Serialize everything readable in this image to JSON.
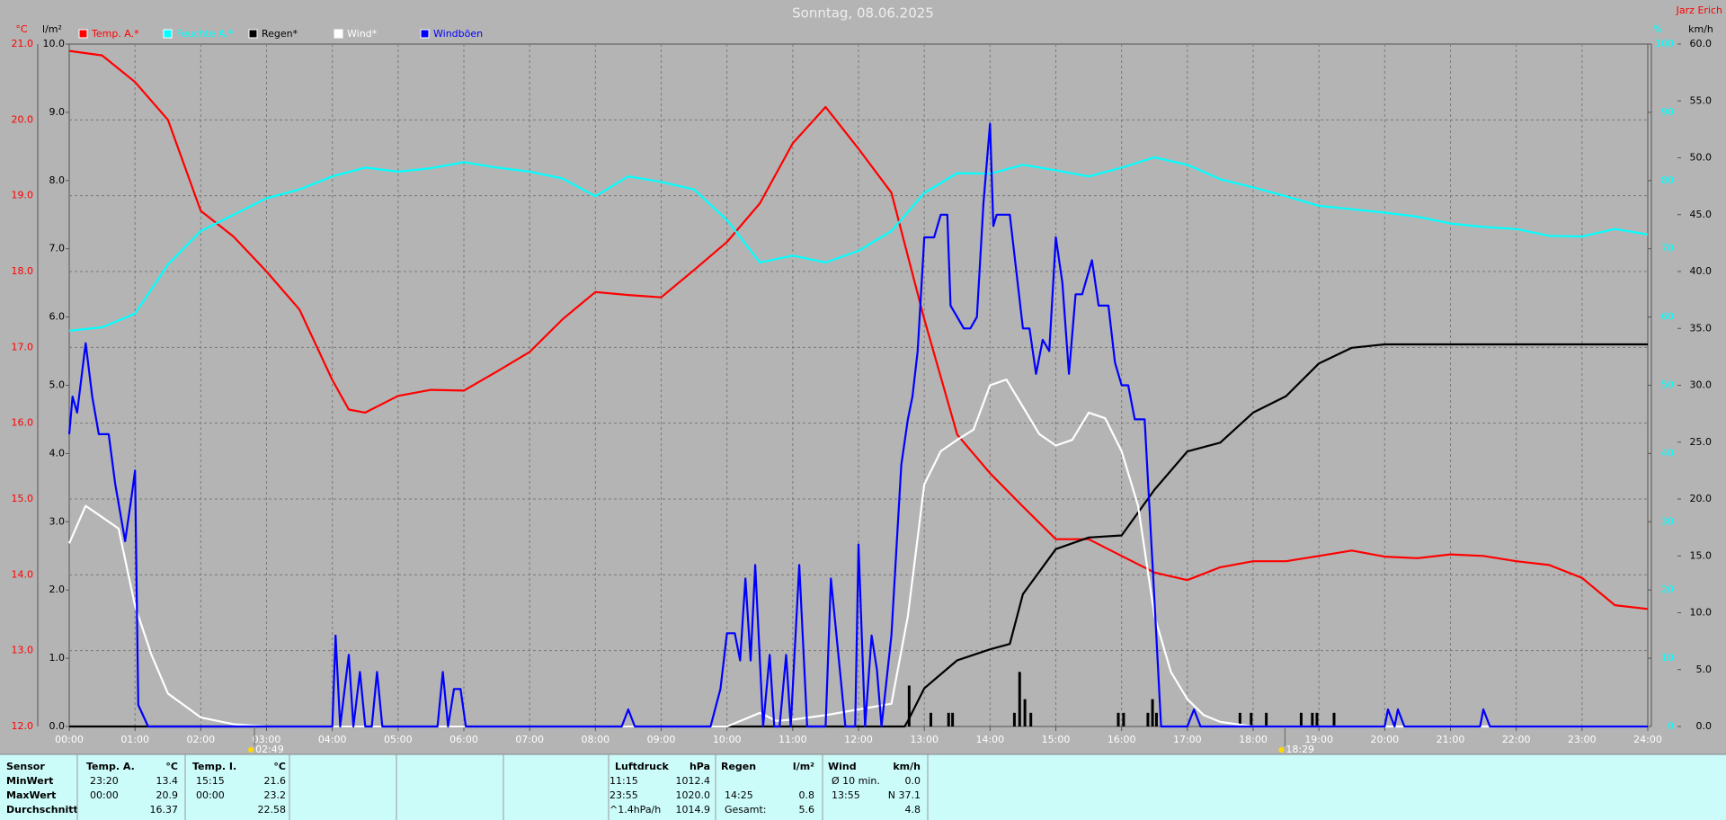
{
  "chart_data": {
    "type": "line",
    "title": "Sonntag, 08.06.2025",
    "author": "Jarz Erich",
    "axis_units": {
      "y": "°C",
      "y2": "l/m²",
      "y3": "%",
      "y4": "km/h"
    },
    "xlim": [
      0,
      24
    ],
    "xticks": [
      {
        "value": 0,
        "label": "00:00"
      },
      {
        "value": 1,
        "label": "01:00"
      },
      {
        "value": 2,
        "label": "02:00"
      },
      {
        "value": 3,
        "label": "03:00"
      },
      {
        "value": 4,
        "label": "04:00"
      },
      {
        "value": 5,
        "label": "05:00"
      },
      {
        "value": 6,
        "label": "06:00"
      },
      {
        "value": 7,
        "label": "07:00"
      },
      {
        "value": 8,
        "label": "08:00"
      },
      {
        "value": 9,
        "label": "09:00"
      },
      {
        "value": 10,
        "label": "10:00"
      },
      {
        "value": 11,
        "label": "11:00"
      },
      {
        "value": 12,
        "label": "12:00"
      },
      {
        "value": 13,
        "label": "13:00"
      },
      {
        "value": 14,
        "label": "14:00"
      },
      {
        "value": 15,
        "label": "15:00"
      },
      {
        "value": 16,
        "label": "16:00"
      },
      {
        "value": 17,
        "label": "17:00"
      },
      {
        "value": 18,
        "label": "18:00"
      },
      {
        "value": 19,
        "label": "19:00"
      },
      {
        "value": 20,
        "label": "20:00"
      },
      {
        "value": 21,
        "label": "21:00"
      },
      {
        "value": 22,
        "label": "22:00"
      },
      {
        "value": 23,
        "label": "23:00"
      },
      {
        "value": 24,
        "label": "24:00"
      }
    ],
    "ylim": [
      12,
      21
    ],
    "yticks": [
      {
        "value": 12,
        "label": "12.0"
      },
      {
        "value": 13,
        "label": "13.0"
      },
      {
        "value": 14,
        "label": "14.0"
      },
      {
        "value": 15,
        "label": "15.0"
      },
      {
        "value": 16,
        "label": "16.0"
      },
      {
        "value": 17,
        "label": "17.0"
      },
      {
        "value": 18,
        "label": "18.0"
      },
      {
        "value": 19,
        "label": "19.0"
      },
      {
        "value": 20,
        "label": "20.0"
      },
      {
        "value": 21,
        "label": "21.0"
      }
    ],
    "y2lim": [
      0,
      10
    ],
    "y2ticks": [
      {
        "value": 0,
        "label": "0.0"
      },
      {
        "value": 1,
        "label": "1.0"
      },
      {
        "value": 2,
        "label": "2.0"
      },
      {
        "value": 3,
        "label": "3.0"
      },
      {
        "value": 4,
        "label": "4.0"
      },
      {
        "value": 5,
        "label": "5.0"
      },
      {
        "value": 6,
        "label": "6.0"
      },
      {
        "value": 7,
        "label": "7.0"
      },
      {
        "value": 8,
        "label": "8.0"
      },
      {
        "value": 9,
        "label": "9.0"
      },
      {
        "value": 10,
        "label": "10.0"
      }
    ],
    "y3lim": [
      0,
      100
    ],
    "y3ticks": [
      0,
      10,
      20,
      30,
      40,
      50,
      60,
      70,
      80,
      90,
      100
    ],
    "y4lim": [
      0,
      60
    ],
    "y4ticks": [
      {
        "value": 0,
        "label": "0.0"
      },
      {
        "value": 5,
        "label": "5.0"
      },
      {
        "value": 10,
        "label": "10.0"
      },
      {
        "value": 15,
        "label": "15.0"
      },
      {
        "value": 20,
        "label": "20.0"
      },
      {
        "value": 25,
        "label": "25.0"
      },
      {
        "value": 30,
        "label": "30.0"
      },
      {
        "value": 35,
        "label": "35.0"
      },
      {
        "value": 40,
        "label": "40.0"
      },
      {
        "value": 45,
        "label": "45.0"
      },
      {
        "value": 50,
        "label": "50.0"
      },
      {
        "value": 55,
        "label": "55.0"
      },
      {
        "value": 60,
        "label": "60.0"
      }
    ],
    "grid": true,
    "series": [
      {
        "name": "Temp. A.*",
        "color": "#ff0000",
        "axis": "y",
        "x": [
          0,
          0.5,
          1,
          1.5,
          2,
          2.5,
          3,
          3.5,
          4,
          4.25,
          4.5,
          5,
          5.5,
          6,
          6.5,
          7,
          7.5,
          8,
          8.5,
          9,
          9.5,
          10,
          10.5,
          11,
          11.5,
          12,
          12.5,
          13,
          13.5,
          14,
          14.5,
          15,
          15.5,
          16,
          16.5,
          17,
          17.5,
          18,
          18.5,
          19,
          19.5,
          20,
          20.5,
          21,
          21.5,
          22,
          22.5,
          23,
          23.5,
          24
        ],
        "values": [
          20.91,
          20.85,
          20.5,
          20.0,
          18.8,
          18.46,
          18.0,
          17.5,
          16.57,
          16.18,
          16.14,
          16.36,
          16.44,
          16.43,
          16.68,
          16.94,
          17.37,
          17.73,
          17.69,
          17.66,
          18.02,
          18.39,
          18.9,
          19.69,
          20.17,
          19.62,
          19.04,
          17.37,
          15.85,
          15.34,
          14.9,
          14.47,
          14.47,
          14.25,
          14.03,
          13.93,
          14.1,
          14.18,
          14.18,
          14.25,
          14.32,
          14.24,
          14.22,
          14.27,
          14.25,
          14.18,
          14.13,
          13.96,
          13.6,
          13.55
        ]
      },
      {
        "name": "Feuchte A.*",
        "color": "#00ffff",
        "axis": "y3",
        "x": [
          0,
          0.5,
          1,
          1.5,
          2,
          2.5,
          3,
          3.5,
          4,
          4.5,
          5,
          5.5,
          6,
          6.5,
          7,
          7.5,
          8,
          8.5,
          9,
          9.5,
          10,
          10.5,
          11,
          11.5,
          12,
          12.5,
          13,
          13.5,
          14,
          14.5,
          15,
          15.5,
          16,
          16.5,
          17,
          17.5,
          18,
          18.5,
          19,
          19.5,
          20,
          20.5,
          21,
          21.5,
          22,
          22.5,
          23,
          23.5,
          24
        ],
        "values": [
          58,
          58.5,
          60.5,
          67.7,
          72.6,
          75,
          77.4,
          78.7,
          80.6,
          81.9,
          81.3,
          81.8,
          82.7,
          81.9,
          81.3,
          80.3,
          77.7,
          80.6,
          79.8,
          78.7,
          74.2,
          68,
          69,
          68,
          69.7,
          72.6,
          78.2,
          81.1,
          81,
          82.3,
          81.5,
          80.6,
          81.9,
          83.4,
          82.3,
          80.2,
          79,
          77.7,
          76.3,
          75.8,
          75.3,
          74.7,
          73.7,
          73.2,
          72.9,
          71.9,
          71.8,
          72.9,
          72.1
        ]
      },
      {
        "name": "Regen*",
        "color": "#000000",
        "axis": "y2",
        "x": [
          0,
          12.7,
          12.75,
          13,
          13.5,
          14,
          14.3,
          14.5,
          15,
          15.5,
          16,
          16.5,
          17,
          17.5,
          18,
          18.5,
          19,
          19.5,
          20,
          24
        ],
        "values": [
          0,
          0,
          0.08,
          0.56,
          0.97,
          1.13,
          1.21,
          1.94,
          2.6,
          2.77,
          2.8,
          3.47,
          4.03,
          4.16,
          4.6,
          4.84,
          5.32,
          5.55,
          5.6,
          5.6
        ]
      },
      {
        "name": "Wind*",
        "color": "#ffffff",
        "axis": "y4",
        "x": [
          0,
          0.25,
          0.5,
          0.75,
          1,
          1.25,
          1.5,
          2,
          2.5,
          3,
          10,
          10.5,
          10.75,
          11,
          11.5,
          12,
          12.5,
          12.75,
          13,
          13.25,
          13.5,
          13.75,
          14,
          14.25,
          14.5,
          14.75,
          15,
          15.25,
          15.5,
          15.75,
          16,
          16.25,
          16.5,
          16.75,
          17,
          17.25,
          17.5,
          18,
          24
        ],
        "values": [
          16.1,
          19.4,
          18.4,
          17.4,
          10.6,
          6.3,
          2.9,
          0.8,
          0.2,
          0,
          0,
          1.2,
          0.5,
          0.6,
          1,
          1.5,
          2,
          9.7,
          21.3,
          24.2,
          25.2,
          26.1,
          30,
          30.5,
          28.1,
          25.7,
          24.7,
          25.2,
          27.6,
          27.1,
          24.2,
          19.4,
          9.7,
          4.8,
          2.4,
          1,
          0.4,
          0,
          0
        ]
      },
      {
        "name": "Windböen",
        "color": "#0000ff",
        "axis": "y4",
        "x": [
          0,
          0.05,
          0.12,
          0.25,
          0.35,
          0.45,
          0.6,
          0.7,
          0.85,
          0.95,
          1.0,
          1.05,
          1.2,
          4.0,
          4.05,
          4.12,
          4.25,
          4.32,
          4.42,
          4.5,
          4.6,
          4.68,
          4.76,
          5.6,
          5.68,
          5.76,
          5.85,
          5.95,
          6.03,
          8.4,
          8.5,
          8.6,
          9.75,
          9.9,
          10.0,
          10.12,
          10.2,
          10.28,
          10.36,
          10.43,
          10.55,
          10.65,
          10.72,
          10.8,
          10.9,
          10.97,
          11.1,
          11.22,
          11.5,
          11.58,
          11.7,
          11.8,
          11.95,
          12.0,
          12.1,
          12.2,
          12.28,
          12.35,
          12.5,
          12.65,
          12.75,
          12.82,
          12.9,
          13.0,
          13.15,
          13.25,
          13.35,
          13.4,
          13.5,
          13.6,
          13.7,
          13.8,
          13.9,
          14.0,
          14.05,
          14.1,
          14.3,
          14.4,
          14.5,
          14.6,
          14.7,
          14.8,
          14.9,
          15.0,
          15.1,
          15.2,
          15.3,
          15.4,
          15.55,
          15.65,
          15.8,
          15.9,
          16.0,
          16.1,
          16.2,
          16.35,
          16.5,
          16.6,
          17.0,
          17.1,
          17.2,
          20.0,
          20.05,
          20.15,
          20.2,
          20.3,
          21.45,
          21.5,
          21.6,
          24
        ],
        "values": [
          25.7,
          29,
          27.6,
          33.7,
          29,
          25.7,
          25.7,
          21.3,
          16.3,
          20.3,
          22.5,
          1.9,
          0,
          0,
          8,
          0,
          6.3,
          0,
          4.8,
          0,
          0,
          4.8,
          0,
          0,
          4.8,
          0,
          3.3,
          3.3,
          0,
          0,
          1.5,
          0,
          0,
          3.3,
          8.2,
          8.2,
          5.8,
          13,
          5.8,
          14.2,
          0,
          6.3,
          0,
          0,
          6.3,
          0,
          14.2,
          0,
          0,
          13,
          6,
          0,
          0,
          16,
          0,
          8,
          5,
          0,
          8,
          23,
          27,
          29,
          33,
          43,
          43,
          45,
          45,
          37,
          36,
          35,
          35,
          36,
          46,
          53,
          44,
          45,
          45,
          40,
          35,
          35,
          31,
          34,
          33,
          43,
          39,
          31,
          38,
          38,
          41,
          37,
          37,
          32,
          30,
          30,
          27,
          27,
          11,
          0,
          0,
          1.5,
          0,
          0,
          1.5,
          0,
          1.5,
          0,
          0,
          1.5,
          0,
          0
        ]
      }
    ],
    "rain_bars": {
      "axis": "y2",
      "x": [
        12.77,
        13.1,
        13.37,
        13.43,
        14.37,
        14.45,
        14.53,
        14.62,
        15.95,
        16.03,
        16.4,
        16.47,
        16.53,
        17.8,
        17.97,
        18.2,
        18.73,
        18.9,
        18.97,
        19.23
      ],
      "values": [
        0.6,
        0.2,
        0.2,
        0.2,
        0.2,
        0.8,
        0.4,
        0.2,
        0.2,
        0.2,
        0.2,
        0.4,
        0.2,
        0.2,
        0.2,
        0.2,
        0.2,
        0.2,
        0.2,
        0.2
      ]
    },
    "sun_markers": [
      {
        "value": 2.8167,
        "label": "02:49"
      },
      {
        "value": 18.4833,
        "label": "18:29"
      }
    ]
  },
  "stats": {
    "row_labels": [
      "Sensor",
      "MinWert",
      "MaxWert",
      "Durchschnitt"
    ],
    "groups": [
      {
        "title": "Temp. A.",
        "unit": "°C",
        "rows": [
          [
            "23:20",
            "13.4"
          ],
          [
            "00:00",
            "20.9"
          ],
          [
            null,
            "16.37"
          ]
        ]
      },
      {
        "title": "Temp. I.",
        "unit": "°C",
        "rows": [
          [
            "15:15",
            "21.6"
          ],
          [
            "00:00",
            "23.2"
          ],
          [
            null,
            "22.58"
          ]
        ]
      },
      {
        "title": "Luftdruck",
        "unit": "hPa",
        "rows": [
          [
            "11:15",
            "1012.4"
          ],
          [
            "23:55",
            "1020.0"
          ],
          [
            "^1.4hPa/h",
            "1014.9"
          ]
        ]
      },
      {
        "title": "Regen",
        "unit": "l/m²",
        "rows": [
          [
            null,
            null
          ],
          [
            "14:25",
            "0.8"
          ],
          [
            "Gesamt:",
            "5.6"
          ]
        ]
      },
      {
        "title": "Wind",
        "unit": "km/h",
        "rows": [
          [
            "Ø 10 min.",
            "0.0"
          ],
          [
            "13:55",
            "N 37.1"
          ],
          [
            null,
            "4.8"
          ]
        ]
      }
    ]
  }
}
